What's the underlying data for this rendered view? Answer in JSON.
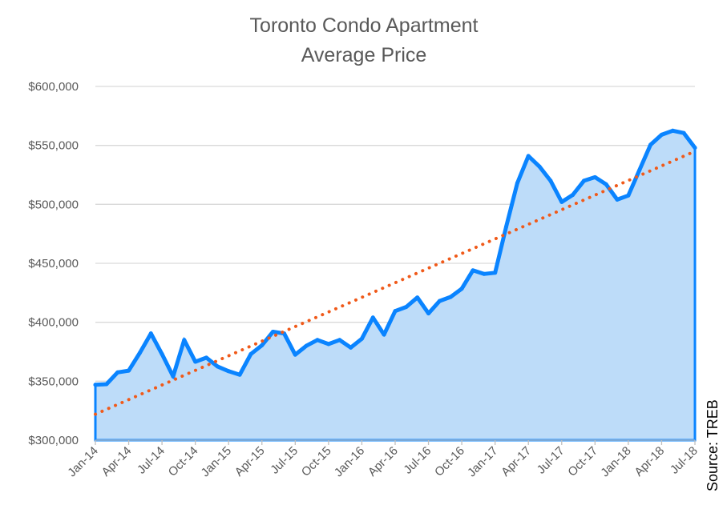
{
  "colors": {
    "line": "#0a84ff",
    "area": "#bddcf9",
    "trend": "#f05a1a",
    "grid": "#d9d9d9",
    "text": "#595959"
  },
  "chart_data": {
    "type": "area",
    "title": "Toronto Condo Apartment Average Price",
    "title_lines": [
      "Toronto Condo Apartment",
      "Average Price"
    ],
    "xlabel": "",
    "ylabel": "",
    "ylim": [
      300000,
      600000
    ],
    "yticks": [
      300000,
      350000,
      400000,
      450000,
      500000,
      550000,
      600000
    ],
    "ytick_labels": [
      "$300,000",
      "$350,000",
      "$400,000",
      "$450,000",
      "$500,000",
      "$550,000",
      "$600,000"
    ],
    "x_tick_labels": [
      "Jan-14",
      "Apr-14",
      "Jul-14",
      "Oct-14",
      "Jan-15",
      "Apr-15",
      "Jul-15",
      "Oct-15",
      "Jan-16",
      "Apr-16",
      "Jul-16",
      "Oct-16",
      "Jan-17",
      "Apr-17",
      "Jul-17",
      "Oct-17",
      "Jan-18",
      "Apr-18",
      "Jul-18"
    ],
    "grid": true,
    "legend": "none",
    "trendline": {
      "type": "linear",
      "style": "dotted",
      "start": 322000,
      "end": 545000
    },
    "categories": [
      "Jan-14",
      "Feb-14",
      "Mar-14",
      "Apr-14",
      "May-14",
      "Jun-14",
      "Jul-14",
      "Aug-14",
      "Sep-14",
      "Oct-14",
      "Nov-14",
      "Dec-14",
      "Jan-15",
      "Feb-15",
      "Mar-15",
      "Apr-15",
      "May-15",
      "Jun-15",
      "Jul-15",
      "Aug-15",
      "Sep-15",
      "Oct-15",
      "Nov-15",
      "Dec-15",
      "Jan-16",
      "Feb-16",
      "Mar-16",
      "Apr-16",
      "May-16",
      "Jun-16",
      "Jul-16",
      "Aug-16",
      "Sep-16",
      "Oct-16",
      "Nov-16",
      "Dec-16",
      "Jan-17",
      "Feb-17",
      "Mar-17",
      "Apr-17",
      "May-17",
      "Jun-17",
      "Jul-17",
      "Aug-17",
      "Sep-17",
      "Oct-17",
      "Nov-17",
      "Dec-17",
      "Jan-18",
      "Feb-18",
      "Mar-18",
      "Apr-18",
      "May-18",
      "Jun-18",
      "Jul-18"
    ],
    "values": [
      347000,
      347500,
      357500,
      359000,
      374000,
      390500,
      373000,
      354000,
      385000,
      366500,
      370000,
      362500,
      358500,
      355500,
      373000,
      380500,
      392000,
      390500,
      372500,
      380000,
      385000,
      381500,
      385000,
      378500,
      386000,
      404000,
      389500,
      409500,
      413000,
      421000,
      407500,
      418000,
      421500,
      428500,
      444000,
      441000,
      442000,
      481000,
      518000,
      541000,
      532000,
      520000,
      502000,
      508000,
      520000,
      523000,
      517000,
      504000,
      507500,
      529000,
      550500,
      559000,
      562500,
      560500,
      548000
    ]
  },
  "source_note": "Source: TREB"
}
